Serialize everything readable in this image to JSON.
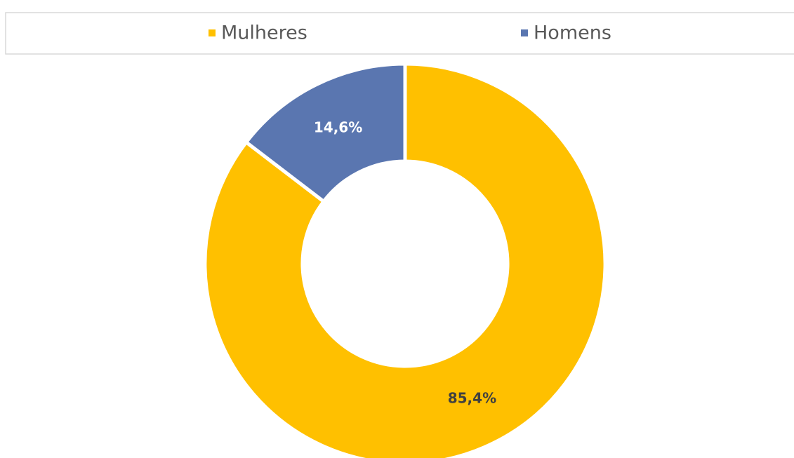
{
  "chart_data": {
    "type": "pie",
    "categories": [
      "Mulheres",
      "Homens"
    ],
    "values": [
      85.4,
      14.6
    ],
    "value_labels": [
      "85,4%",
      "14,6%"
    ],
    "colors": [
      "#ffc000",
      "#5a76b0"
    ],
    "label_colors": [
      "#404040",
      "#ffffff"
    ],
    "legend": "top"
  }
}
